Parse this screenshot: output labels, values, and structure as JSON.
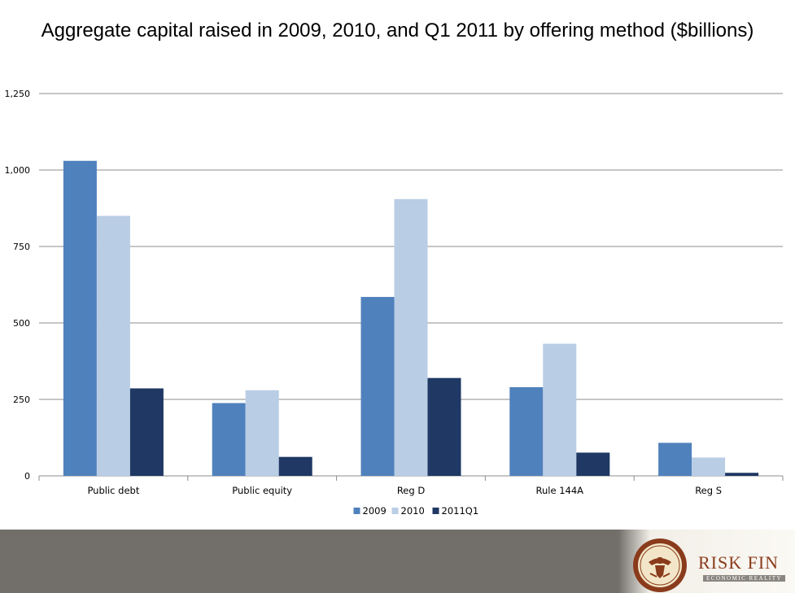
{
  "title": "Aggregate capital raised in 2009, 2010, and Q1 2011 by offering method ($billions)",
  "chart_data": {
    "type": "bar",
    "title": "Aggregate capital raised in 2009, 2010, and Q1 2011 by offering method ($billions)",
    "xlabel": "",
    "ylabel": "",
    "categories": [
      "Public debt",
      "Public equity",
      "Reg D",
      "Rule 144A",
      "Reg S"
    ],
    "series": [
      {
        "name": "2009",
        "color": "#4f81bd",
        "values": [
          1030,
          238,
          585,
          290,
          108
        ]
      },
      {
        "name": "2010",
        "color": "#b9cde5",
        "values": [
          850,
          280,
          905,
          432,
          60
        ]
      },
      {
        "name": "2011Q1",
        "color": "#1f3864",
        "values": [
          286,
          62,
          320,
          76,
          10
        ]
      }
    ],
    "ylim": [
      0,
      1250
    ],
    "yticks": [
      0,
      250,
      500,
      750,
      1000,
      1250
    ],
    "ytick_labels": [
      "0",
      "250",
      "500",
      "750",
      "1,000",
      "1,250"
    ],
    "grid": true,
    "legend_position": "bottom"
  },
  "footer": {
    "brand_name": "RISK FIN",
    "brand_tagline": "ECONOMIC REALITY",
    "seal_icon": "sec-seal-icon"
  }
}
